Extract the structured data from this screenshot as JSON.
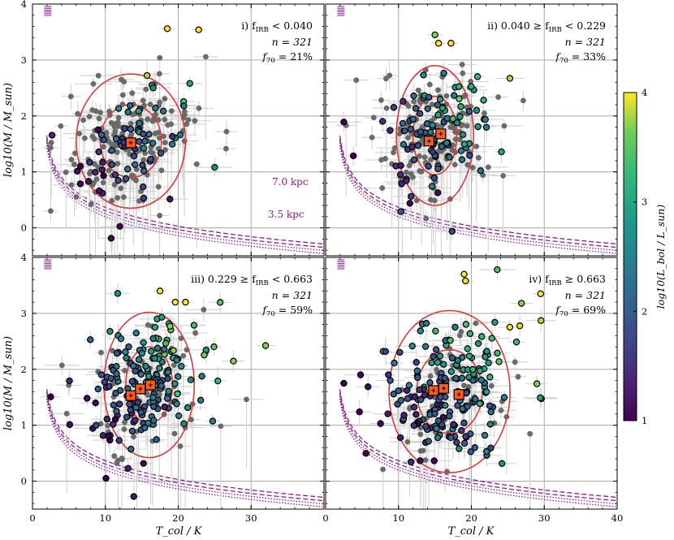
{
  "figure": {
    "xlabel": "T_col / K",
    "ylabel": "log10(M / M_sun)",
    "colorbar_label": "log10(L_bol / L_sun)",
    "colorbar_ticks": [
      "1",
      "2",
      "3",
      "4"
    ],
    "colorbar_range": [
      1,
      4
    ]
  },
  "chart_data": [
    {
      "type": "scatter",
      "panel": "i",
      "title_prefix": "i) f",
      "title_sub": "IRB",
      "title_rel": " < 0.040",
      "n_label": "n = 321",
      "f70_prefix": "f",
      "f70_sub": "70",
      "f70_value": " = 21%",
      "f70_percent": 21,
      "xlim": [
        0,
        40
      ],
      "ylim": [
        -0.5,
        4
      ],
      "x_ticks": [
        0,
        10,
        20,
        30
      ],
      "y_ticks": [
        0,
        1,
        2,
        3,
        4
      ],
      "ellipse_center": [
        13.5,
        1.55
      ],
      "ellipse_inner_radii": [
        4.2,
        0.65
      ],
      "ellipse_outer_radii": [
        7.5,
        1.2
      ],
      "medians": [
        [
          13.5,
          1.52
        ]
      ],
      "distance_labels": [
        "7.0 kpc",
        "3.5 kpc"
      ],
      "highlights": [
        [
          18.5,
          3.56,
          4
        ],
        [
          22.8,
          3.54,
          4
        ]
      ],
      "spread": [
        3.5,
        0.55
      ]
    },
    {
      "type": "scatter",
      "panel": "ii",
      "title_prefix": "ii) 0.040 ≥ f",
      "title_sub": "IRB",
      "title_rel": " < 0.229",
      "n_label": "n = 321",
      "f70_prefix": "f",
      "f70_sub": "70",
      "f70_value": " = 33%",
      "f70_percent": 33,
      "xlim": [
        0,
        40
      ],
      "ylim": [
        -0.5,
        4
      ],
      "x_ticks": [
        0,
        10,
        20,
        30
      ],
      "y_ticks": [
        0,
        1,
        2,
        3,
        4
      ],
      "ellipse_center": [
        15.0,
        1.65
      ],
      "ellipse_inner_radii": [
        3.0,
        0.7
      ],
      "ellipse_outer_radii": [
        5.3,
        1.25
      ],
      "medians": [
        [
          14.2,
          1.55
        ],
        [
          15.8,
          1.68
        ]
      ],
      "distance_labels": [],
      "highlights": [
        [
          15.5,
          3.3,
          4
        ],
        [
          17.2,
          3.3,
          4
        ],
        [
          15.0,
          3.45,
          3.4
        ]
      ],
      "spread": [
        3.3,
        0.55
      ]
    },
    {
      "type": "scatter",
      "panel": "iii",
      "title_prefix": "iii) 0.229 ≥ f",
      "title_sub": "IRB",
      "title_rel": " < 0.663",
      "n_label": "n = 321",
      "f70_prefix": "f",
      "f70_sub": "70",
      "f70_value": " = 59%",
      "f70_percent": 59,
      "xlim": [
        0,
        40
      ],
      "ylim": [
        -0.5,
        4
      ],
      "x_ticks": [
        0,
        10,
        20,
        30
      ],
      "y_ticks": [
        0,
        1,
        2,
        3,
        4
      ],
      "ellipse_center": [
        16.0,
        1.72
      ],
      "ellipse_inner_radii": [
        3.2,
        0.68
      ],
      "ellipse_outer_radii": [
        6.2,
        1.3
      ],
      "medians": [
        [
          13.5,
          1.53
        ],
        [
          14.8,
          1.65
        ],
        [
          16.2,
          1.72
        ]
      ],
      "distance_labels": [],
      "highlights": [
        [
          17.5,
          3.4,
          4
        ],
        [
          19.6,
          3.2,
          4
        ],
        [
          21.0,
          3.2,
          4
        ]
      ],
      "spread": [
        3.6,
        0.6
      ]
    },
    {
      "type": "scatter",
      "panel": "iv",
      "title_prefix": "iv) f",
      "title_sub": "IRB",
      "title_rel": " ≥ 0.663",
      "n_label": "n = 321",
      "f70_prefix": "f",
      "f70_sub": "70",
      "f70_value": " = 69%",
      "f70_percent": 69,
      "xlim": [
        0,
        40
      ],
      "ylim": [
        -0.5,
        4
      ],
      "x_ticks": [
        0,
        10,
        20,
        30,
        40
      ],
      "y_ticks": [
        0,
        1,
        2,
        3,
        4
      ],
      "ellipse_center": [
        17.0,
        1.6
      ],
      "ellipse_inner_radii": [
        4.5,
        0.75
      ],
      "ellipse_outer_radii": [
        8.3,
        1.45
      ],
      "medians": [
        [
          14.8,
          1.62
        ],
        [
          16.2,
          1.66
        ],
        [
          18.3,
          1.55
        ]
      ],
      "distance_labels": [],
      "highlights": [
        [
          19.0,
          3.7,
          4
        ],
        [
          19.2,
          3.58,
          4
        ],
        [
          29.5,
          3.35,
          4
        ]
      ],
      "spread": [
        4.2,
        0.6
      ]
    }
  ]
}
